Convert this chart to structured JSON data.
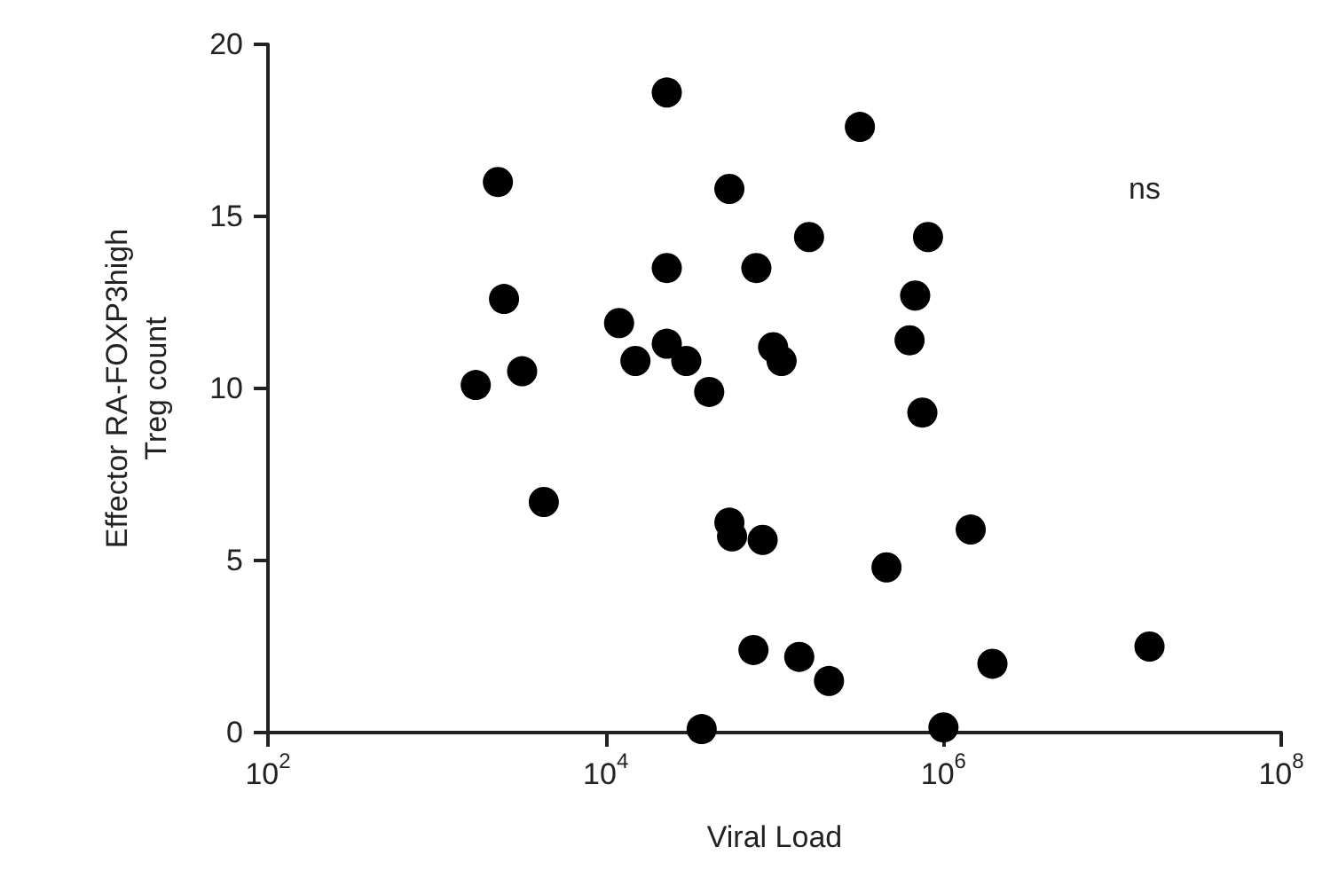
{
  "chart_data": {
    "type": "scatter",
    "xlabel": "Viral Load",
    "ylabel": "Effector RA-FOXP3high\nTreg count",
    "annotations": [
      "ns"
    ],
    "log": "x",
    "xlim": [
      100,
      100000000
    ],
    "ylim": [
      0,
      20
    ],
    "xticks": [
      {
        "value": 100,
        "label": "10$^{2}$"
      },
      {
        "value": 10000,
        "label": "10$^{4}$"
      },
      {
        "value": 1000000,
        "label": "10$^{6}$"
      },
      {
        "value": 100000000,
        "label": "10$^{8}$"
      }
    ],
    "yticks": [
      0,
      5,
      10,
      15,
      20
    ],
    "grid": false,
    "marker": "circle",
    "series": [
      {
        "color": "#000000",
        "x": [
          23000,
          2300,
          54000,
          23000,
          78000,
          2500,
          12000,
          23000,
          15000,
          30000,
          1700,
          3200,
          41000,
          320000,
          160000,
          810000,
          680000,
          98000,
          110000,
          630000,
          750000,
          4300,
          54000,
          56000,
          85000,
          75000,
          37000,
          1450000,
          460000,
          140000,
          210000,
          1950000,
          16600000,
          1000000
        ],
        "values": [
          18.6,
          16.0,
          15.8,
          13.5,
          13.5,
          12.6,
          11.9,
          11.3,
          10.8,
          10.8,
          10.1,
          10.5,
          9.9,
          17.6,
          14.4,
          14.4,
          12.7,
          11.2,
          10.8,
          11.4,
          9.3,
          6.7,
          6.1,
          5.7,
          5.6,
          2.4,
          0.1,
          5.9,
          4.8,
          2.2,
          1.5,
          2.0,
          2.5,
          0.15
        ]
      }
    ]
  }
}
